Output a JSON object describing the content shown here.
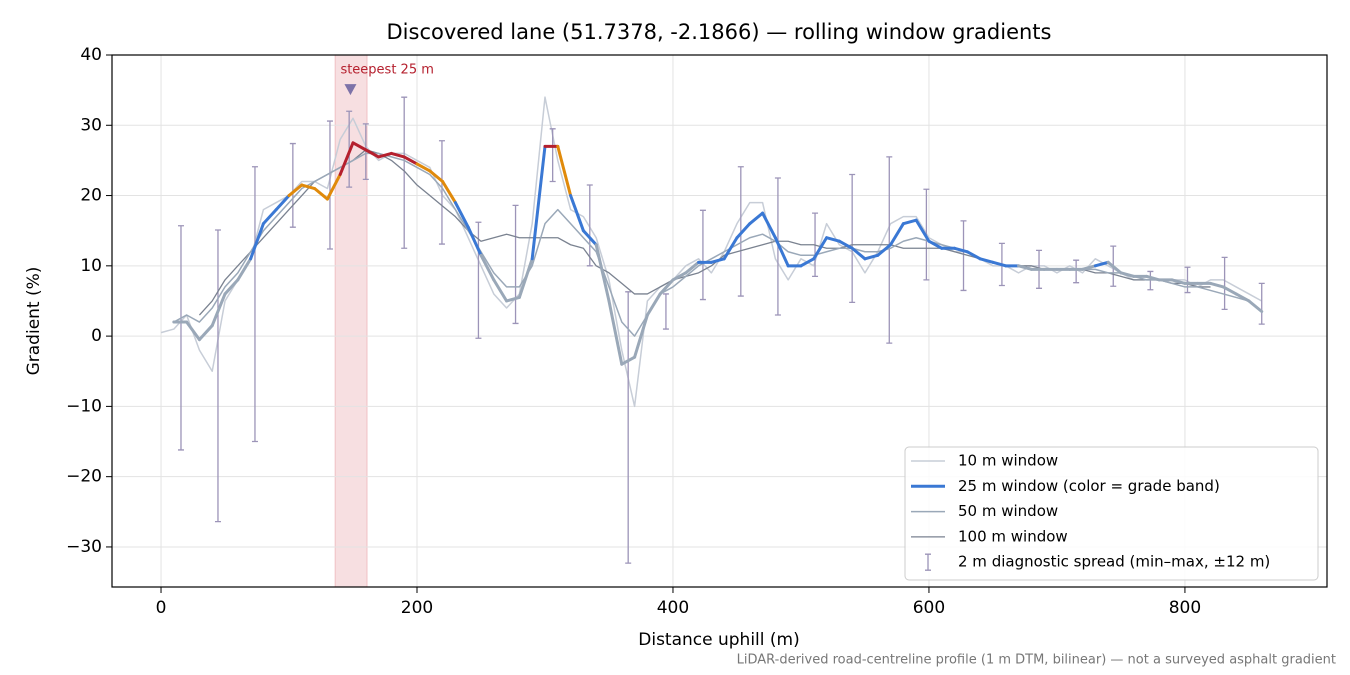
{
  "chart_data": {
    "type": "line",
    "title": "Discovered lane (51.7378, -2.1866) — rolling window gradients",
    "x_label": "Distance uphill (m)",
    "y_label": "Gradient (%)",
    "footnote": "LiDAR-derived road-centreline profile (1 m DTM, bilinear) — not a surveyed asphalt gradient",
    "xlim": [
      -38.3,
      911
    ],
    "ylim": [
      -35.7,
      40
    ],
    "xticks": [
      0,
      200,
      400,
      600,
      800
    ],
    "yticks": [
      {
        "value": -30,
        "label": "−30"
      },
      {
        "value": -20,
        "label": "−20"
      },
      {
        "value": -10,
        "label": "−10"
      },
      0,
      10,
      20,
      30,
      40
    ],
    "grid": true,
    "legend": "lower right",
    "x": [
      0,
      10,
      20,
      30,
      40,
      50,
      60,
      70,
      80,
      90,
      100,
      110,
      120,
      130,
      140,
      150,
      160,
      170,
      180,
      190,
      200,
      210,
      220,
      230,
      240,
      250,
      260,
      270,
      280,
      290,
      300,
      310,
      320,
      330,
      340,
      350,
      360,
      370,
      380,
      390,
      400,
      410,
      420,
      430,
      440,
      450,
      460,
      470,
      480,
      490,
      500,
      510,
      520,
      530,
      540,
      550,
      560,
      570,
      580,
      590,
      600,
      610,
      620,
      630,
      640,
      650,
      660,
      670,
      680,
      690,
      700,
      710,
      720,
      730,
      740,
      750,
      760,
      770,
      780,
      790,
      800,
      810,
      820,
      830,
      840,
      850,
      860
    ],
    "series": [
      {
        "name": "10 m window",
        "color": "#c7cdd7",
        "width": 1.5,
        "values": [
          0.5,
          1,
          3,
          -2,
          -5,
          5,
          8,
          11,
          18,
          19,
          20,
          22,
          22,
          21,
          28,
          31,
          27,
          25,
          26,
          26,
          25,
          24,
          20,
          18,
          14,
          10,
          6,
          4,
          6,
          16,
          34,
          25,
          18,
          17,
          14,
          8,
          -2,
          -10,
          5,
          7,
          8,
          10,
          11,
          9,
          12,
          16,
          19,
          19,
          11,
          8,
          11,
          10,
          16,
          13,
          12,
          9,
          12,
          16,
          17,
          17,
          14,
          13,
          12,
          12,
          11,
          10,
          10,
          9,
          10,
          10,
          9,
          10,
          9,
          11,
          10,
          9,
          8,
          8,
          8,
          8,
          8,
          7,
          8,
          8,
          7,
          6,
          5
        ]
      },
      {
        "name": "25 m window (color = grade band)",
        "color": "#3a78d4",
        "width": 3,
        "bands": {
          "thresholds": [
            10,
            20,
            25
          ],
          "colors": [
            "#9aa8b8",
            "#3a78d4",
            "#e08a0b",
            "#b5202e"
          ]
        },
        "values": [
          null,
          2,
          2,
          -0.5,
          1.5,
          6,
          8,
          11,
          16,
          18,
          20,
          21.5,
          21,
          19.5,
          23,
          27.5,
          26.5,
          25.5,
          26,
          25.5,
          24.5,
          23.5,
          22,
          19,
          15.5,
          11.5,
          8,
          5,
          5.5,
          11,
          27,
          27,
          20,
          15,
          13,
          5,
          -4,
          -3,
          3,
          6,
          8,
          9,
          10.5,
          10.5,
          11,
          14,
          16,
          17.5,
          14,
          10,
          10,
          11,
          14,
          13.5,
          12.5,
          11,
          11.5,
          13,
          16,
          16.5,
          13.5,
          12.5,
          12.5,
          12,
          11,
          10.5,
          10,
          10,
          9.5,
          9.5,
          9.5,
          9.5,
          9.5,
          10,
          10.5,
          9,
          8.5,
          8.5,
          8,
          8,
          7.5,
          7.5,
          7.5,
          7,
          6,
          5,
          3.5
        ]
      },
      {
        "name": "50 m window",
        "color": "#9aa8b8",
        "width": 1.5,
        "values": [
          null,
          2,
          3,
          2,
          4,
          7,
          9,
          12,
          15,
          17,
          19,
          21,
          22,
          23,
          24,
          25,
          26,
          26,
          25.5,
          25,
          24,
          23,
          21,
          18,
          15,
          12,
          9,
          7,
          7,
          10,
          16,
          18,
          16,
          14,
          12,
          7,
          2,
          0,
          3,
          6,
          7,
          8.5,
          10,
          11,
          12,
          13,
          14,
          14.5,
          13.5,
          12,
          11.5,
          11.5,
          12,
          12.5,
          12.5,
          12,
          12,
          12.5,
          13.5,
          14,
          13.5,
          13,
          12.5,
          12,
          11,
          10.5,
          10,
          10,
          9.5,
          9.5,
          9.5,
          9.5,
          9.5,
          9.5,
          9,
          9,
          8.5,
          8,
          8,
          7.5,
          7,
          7,
          6.5,
          6,
          5.5,
          5,
          null
        ]
      },
      {
        "name": "100 m window",
        "color": "#7a8290",
        "width": 1.3,
        "values": [
          null,
          null,
          null,
          3,
          5,
          8,
          10,
          12,
          14,
          16,
          18,
          20,
          22,
          23,
          24,
          25,
          26.5,
          26,
          25,
          23.5,
          21.5,
          20,
          18.5,
          17,
          15,
          13.5,
          14,
          14.5,
          14,
          14,
          14,
          14,
          13,
          12.5,
          10,
          9,
          7.5,
          6,
          6,
          7,
          8,
          8.5,
          9,
          10,
          11.5,
          12,
          12.5,
          13,
          13.5,
          13.5,
          13,
          13,
          12.5,
          12.5,
          13,
          13,
          13,
          13,
          12.5,
          12.5,
          12.5,
          12.5,
          12,
          11.5,
          11,
          10.5,
          10,
          10,
          10,
          9.5,
          9.5,
          9.5,
          9.5,
          9,
          9,
          8.5,
          8,
          8,
          8,
          7.5,
          7.5,
          7,
          7,
          null,
          null,
          null,
          null
        ]
      }
    ],
    "error_bars": {
      "name": "2 m diagnostic spread (min–max, ±12 m)",
      "color": "#9c94b8",
      "x": [
        15.6,
        44.5,
        73.4,
        103,
        132,
        147,
        160,
        190,
        219.5,
        248,
        277,
        306,
        335,
        365,
        394.5,
        423.4,
        453,
        482,
        511,
        540,
        569,
        598,
        627,
        657,
        686,
        715,
        744,
        773,
        802,
        831,
        860
      ],
      "max": [
        15.7,
        15.1,
        24.1,
        27.4,
        30.6,
        32,
        30.2,
        34,
        27.8,
        16.2,
        18.6,
        29.5,
        21.5,
        6.3,
        6,
        17.9,
        24.1,
        22.5,
        17.5,
        23,
        25.5,
        20.9,
        16.4,
        13.2,
        12.2,
        10.8,
        12.8,
        9.2,
        9.8,
        11.2,
        7.5
      ],
      "min": [
        -16.2,
        -26.4,
        -15,
        15.5,
        12.4,
        21.2,
        22.3,
        12.5,
        13.1,
        -0.3,
        1.8,
        22,
        10,
        -32.3,
        1,
        5.2,
        5.7,
        3,
        8.5,
        4.8,
        -1,
        8,
        6.5,
        7.2,
        6.8,
        7.6,
        7.1,
        6.6,
        6.2,
        3.8,
        1.7
      ]
    },
    "highlight": {
      "span": [
        136,
        161
      ],
      "color": "#d9606a",
      "marker_x": 148,
      "marker_y": 35,
      "marker_color": "#7d72a8",
      "label": "steepest 25 m"
    }
  }
}
